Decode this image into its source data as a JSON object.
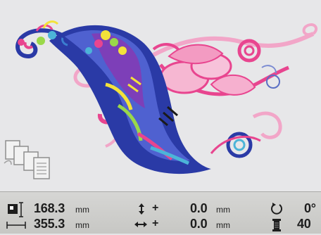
{
  "design": {
    "name": "embroidery-design-preview"
  },
  "status": {
    "height_value": "168.3",
    "height_unit": "mm",
    "width_value": "355.3",
    "width_unit": "mm",
    "v_offset_sign": "+",
    "v_offset_value": "0.0",
    "v_offset_unit": "mm",
    "h_offset_sign": "+",
    "h_offset_value": "0.0",
    "h_offset_unit": "mm",
    "rotation_value": "0°",
    "color_count_value": "40"
  },
  "icons": [
    "design-size-icon",
    "vertical-move-icon",
    "horizontal-move-icon",
    "rotate-icon",
    "thread-spool-icon",
    "multiple-copies-icon"
  ],
  "colors": {
    "pink": "#e8458f",
    "light_pink": "#f2a6c8",
    "blue": "#2a3aa6",
    "canvas": "#e7e7e9"
  }
}
